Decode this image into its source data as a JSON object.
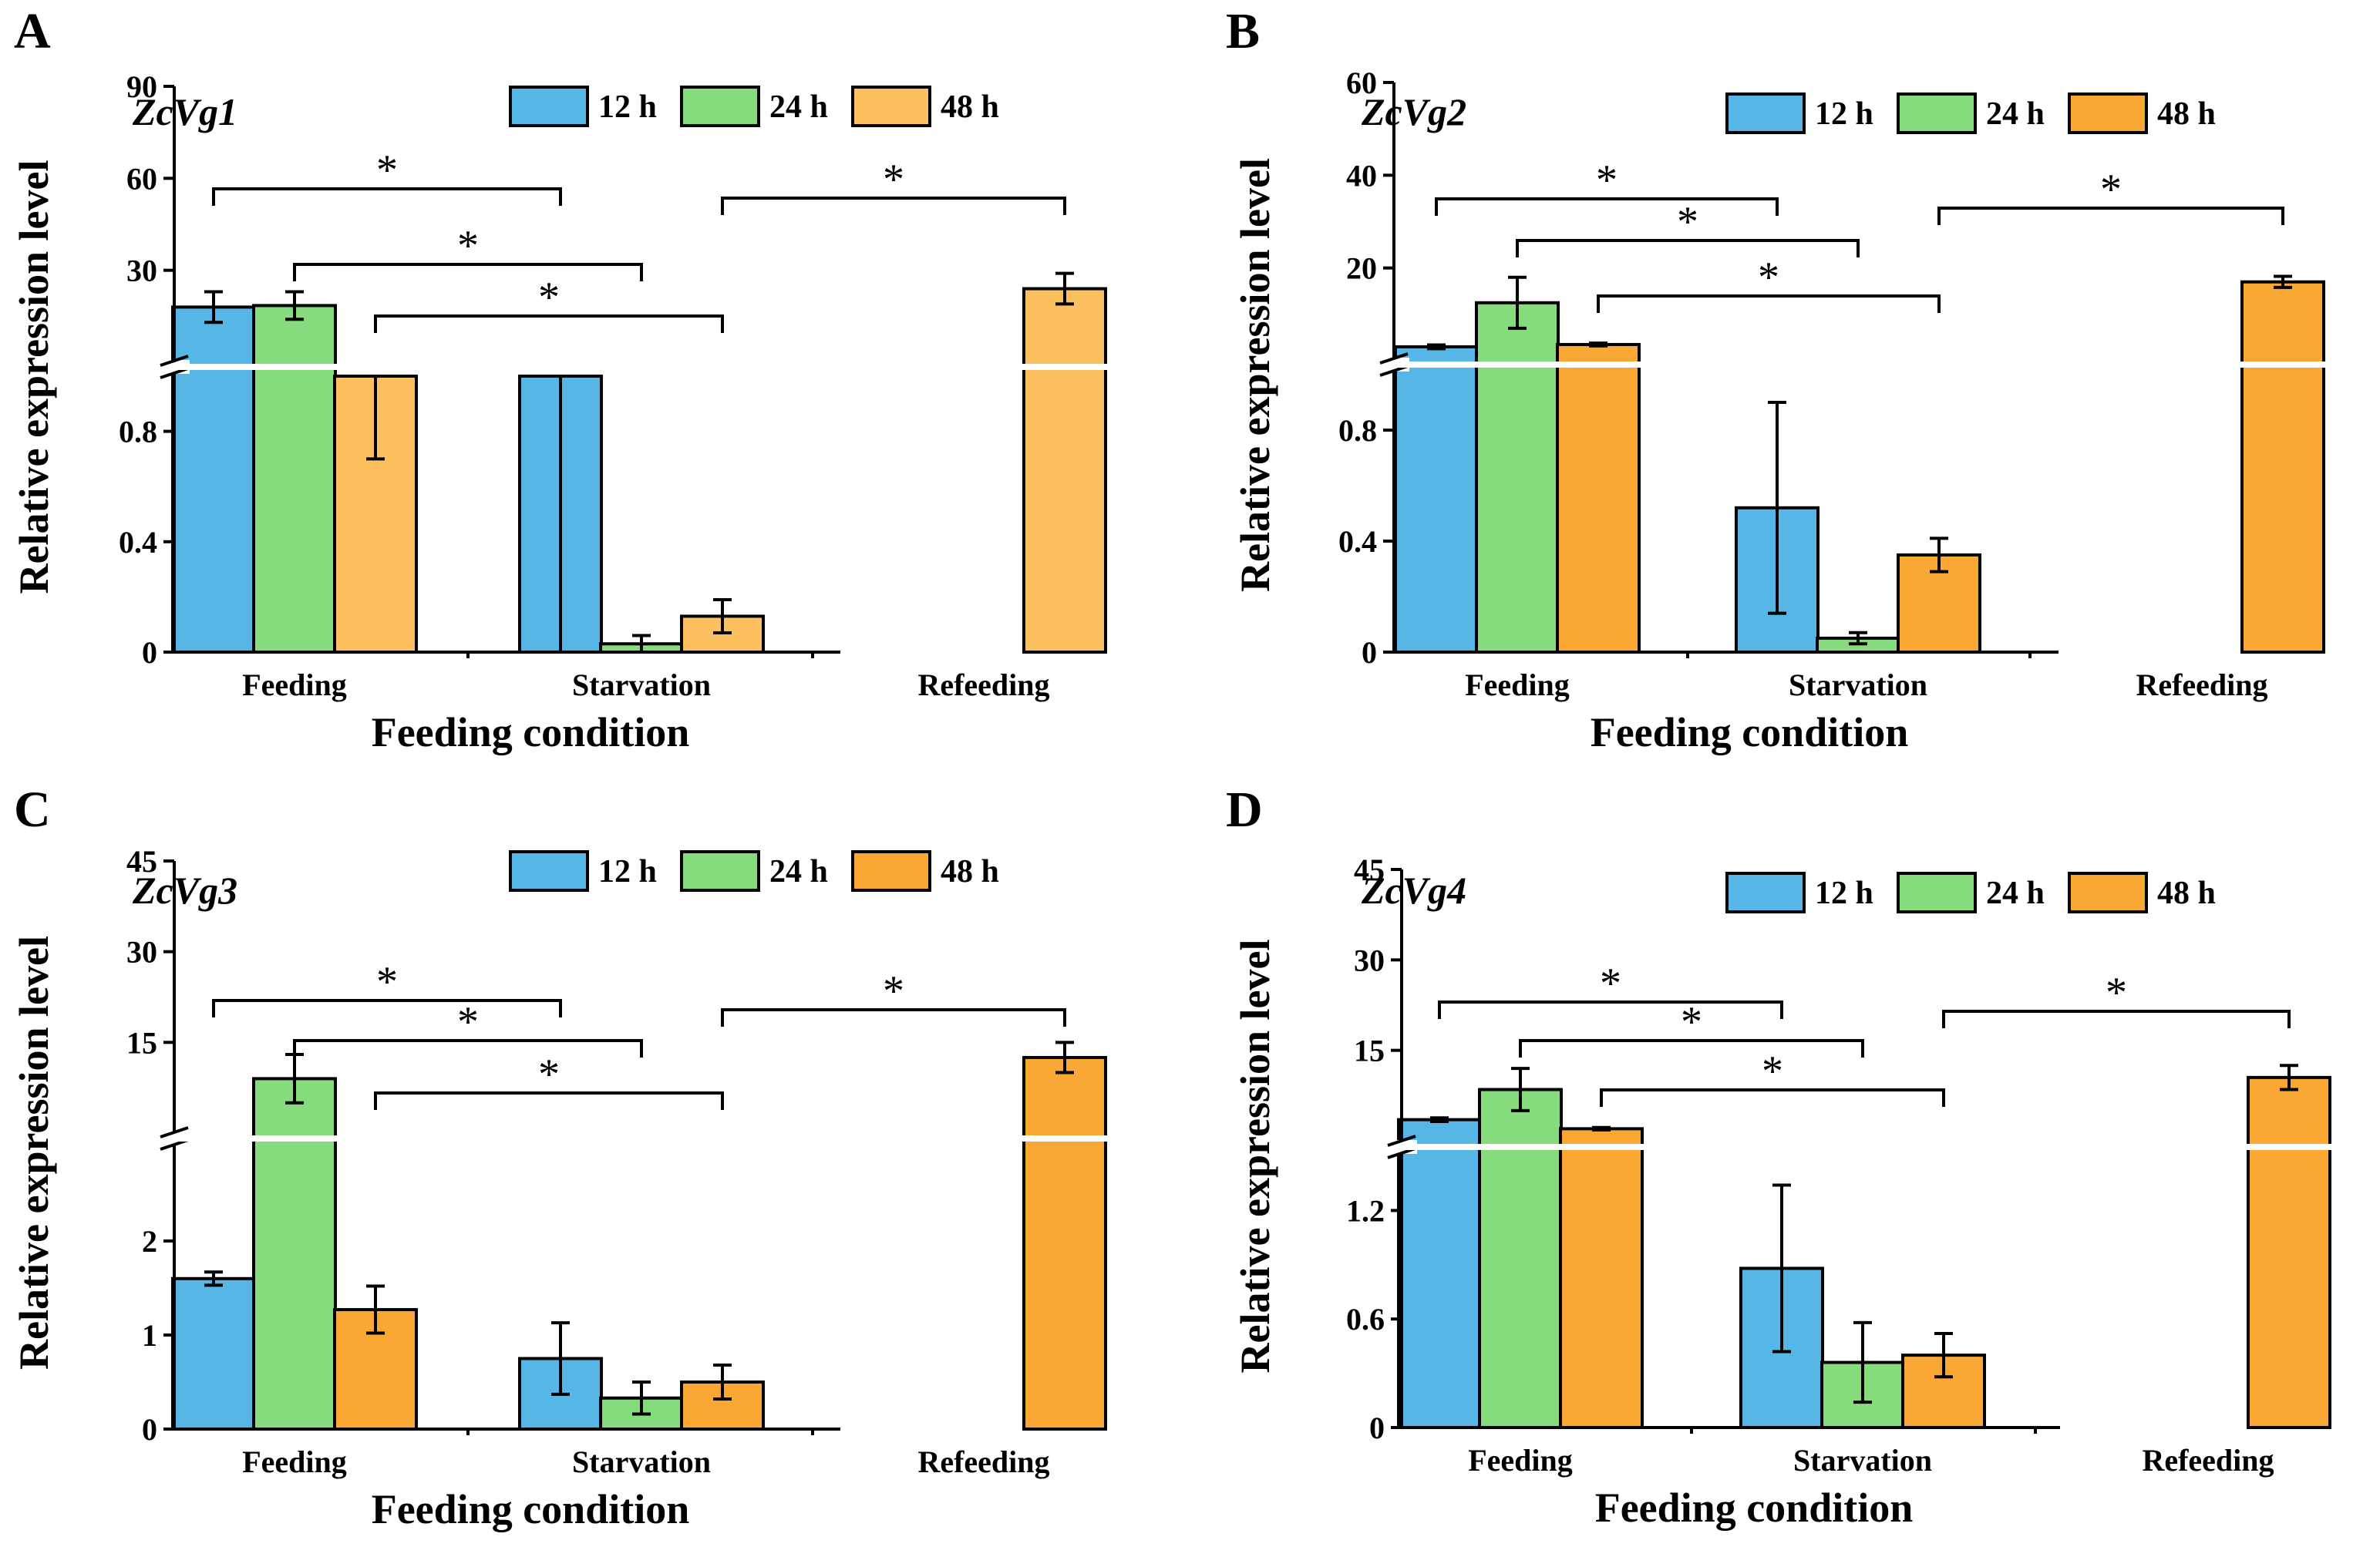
{
  "colors": {
    "12h": "#56b7e6",
    "24h": "#86dc7c",
    "48h_light": "#fdc05f",
    "48h": "#faa835"
  },
  "chart_data": [
    {
      "type": "bar",
      "panel": "A",
      "gene": "ZcVg1",
      "ylabel": "Relative expression level",
      "xlabel": "Feeding condition",
      "categories": [
        "Feeding",
        "Starvation",
        "Refeeding"
      ],
      "legend": [
        "12 h",
        "24 h",
        "48 h"
      ],
      "axis_break": true,
      "upper_ticks": [
        "30",
        "60",
        "90"
      ],
      "lower_ticks": [
        "0",
        "0.4",
        "0.8"
      ],
      "lower_range": [
        0,
        1.0
      ],
      "upper_range": [
        0,
        90
      ],
      "series": [
        {
          "name": "12 h",
          "color_key": "12h",
          "values": [
            18,
            1.0,
            null
          ],
          "errors": [
            5,
            1.2,
            null
          ]
        },
        {
          "name": "24 h",
          "color_key": "24h",
          "values": [
            18.5,
            0.03,
            null
          ],
          "errors": [
            4.5,
            0.03,
            null
          ]
        },
        {
          "name": "48 h",
          "color_key": "48h_light",
          "values": [
            1.0,
            0.13,
            24
          ],
          "errors": [
            0.3,
            0.06,
            5
          ]
        }
      ],
      "significance": [
        "*",
        "*",
        "*",
        "*"
      ]
    },
    {
      "type": "bar",
      "panel": "B",
      "gene": "ZcVg2",
      "ylabel": "Relative expression level",
      "xlabel": "Feeding condition",
      "categories": [
        "Feeding",
        "Starvation",
        "Refeeding"
      ],
      "legend": [
        "12 h",
        "24 h",
        "48 h"
      ],
      "axis_break": true,
      "upper_ticks": [
        "20",
        "40",
        "60"
      ],
      "lower_ticks": [
        "0",
        "0.4",
        "0.8"
      ],
      "lower_range": [
        0,
        1.0
      ],
      "upper_range": [
        0,
        60
      ],
      "series": [
        {
          "name": "12 h",
          "color_key": "12h",
          "values": [
            3,
            0.52,
            null
          ],
          "errors": [
            0.4,
            0.38,
            null
          ]
        },
        {
          "name": "24 h",
          "color_key": "24h",
          "values": [
            12.5,
            0.05,
            null
          ],
          "errors": [
            5.5,
            0.02,
            null
          ]
        },
        {
          "name": "48 h",
          "color_key": "48h",
          "values": [
            3.5,
            0.35,
            17
          ],
          "errors": [
            0.3,
            0.06,
            1.2
          ]
        }
      ],
      "significance": [
        "*",
        "*",
        "*",
        "*"
      ]
    },
    {
      "type": "bar",
      "panel": "C",
      "gene": "ZcVg3",
      "ylabel": "Relative expression level",
      "xlabel": "Feeding condition",
      "categories": [
        "Feeding",
        "Starvation",
        "Refeeding"
      ],
      "legend": [
        "12 h",
        "24 h",
        "48 h"
      ],
      "axis_break": true,
      "upper_ticks": [
        "15",
        "30",
        "45"
      ],
      "lower_ticks": [
        "0",
        "1",
        "2"
      ],
      "lower_range": [
        0,
        3.0
      ],
      "upper_range": [
        0,
        45
      ],
      "series": [
        {
          "name": "12 h",
          "color_key": "12h",
          "values": [
            1.6,
            0.75,
            null
          ],
          "errors": [
            0.07,
            0.38,
            null
          ]
        },
        {
          "name": "24 h",
          "color_key": "24h",
          "values": [
            9,
            0.33,
            null
          ],
          "errors": [
            4,
            0.17,
            null
          ]
        },
        {
          "name": "48 h",
          "color_key": "48h",
          "values": [
            1.27,
            0.5,
            12.5
          ],
          "errors": [
            0.25,
            0.18,
            2.5
          ]
        }
      ],
      "significance": [
        "*",
        "*",
        "*",
        "*"
      ]
    },
    {
      "type": "bar",
      "panel": "D",
      "gene": "ZcVg4",
      "ylabel": "Relative expression level",
      "xlabel": "Feeding condition",
      "categories": [
        "Feeding",
        "Starvation",
        "Refeeding"
      ],
      "legend": [
        "12 h",
        "24 h",
        "48 h"
      ],
      "axis_break": true,
      "upper_ticks": [
        "15",
        "30",
        "45"
      ],
      "lower_ticks": [
        "0",
        "0.6",
        "1.2"
      ],
      "lower_range": [
        0,
        1.5
      ],
      "upper_range": [
        0,
        45
      ],
      "series": [
        {
          "name": "12 h",
          "color_key": "12h",
          "values": [
            3.5,
            0.88,
            null
          ],
          "errors": [
            0.3,
            0.46,
            null
          ]
        },
        {
          "name": "24 h",
          "color_key": "24h",
          "values": [
            8.5,
            0.36,
            null
          ],
          "errors": [
            3.5,
            0.22,
            null
          ]
        },
        {
          "name": "48 h",
          "color_key": "48h",
          "values": [
            2,
            0.4,
            10.5
          ],
          "errors": [
            0.2,
            0.12,
            2
          ]
        }
      ],
      "significance": [
        "*",
        "*",
        "*",
        "*"
      ]
    }
  ]
}
